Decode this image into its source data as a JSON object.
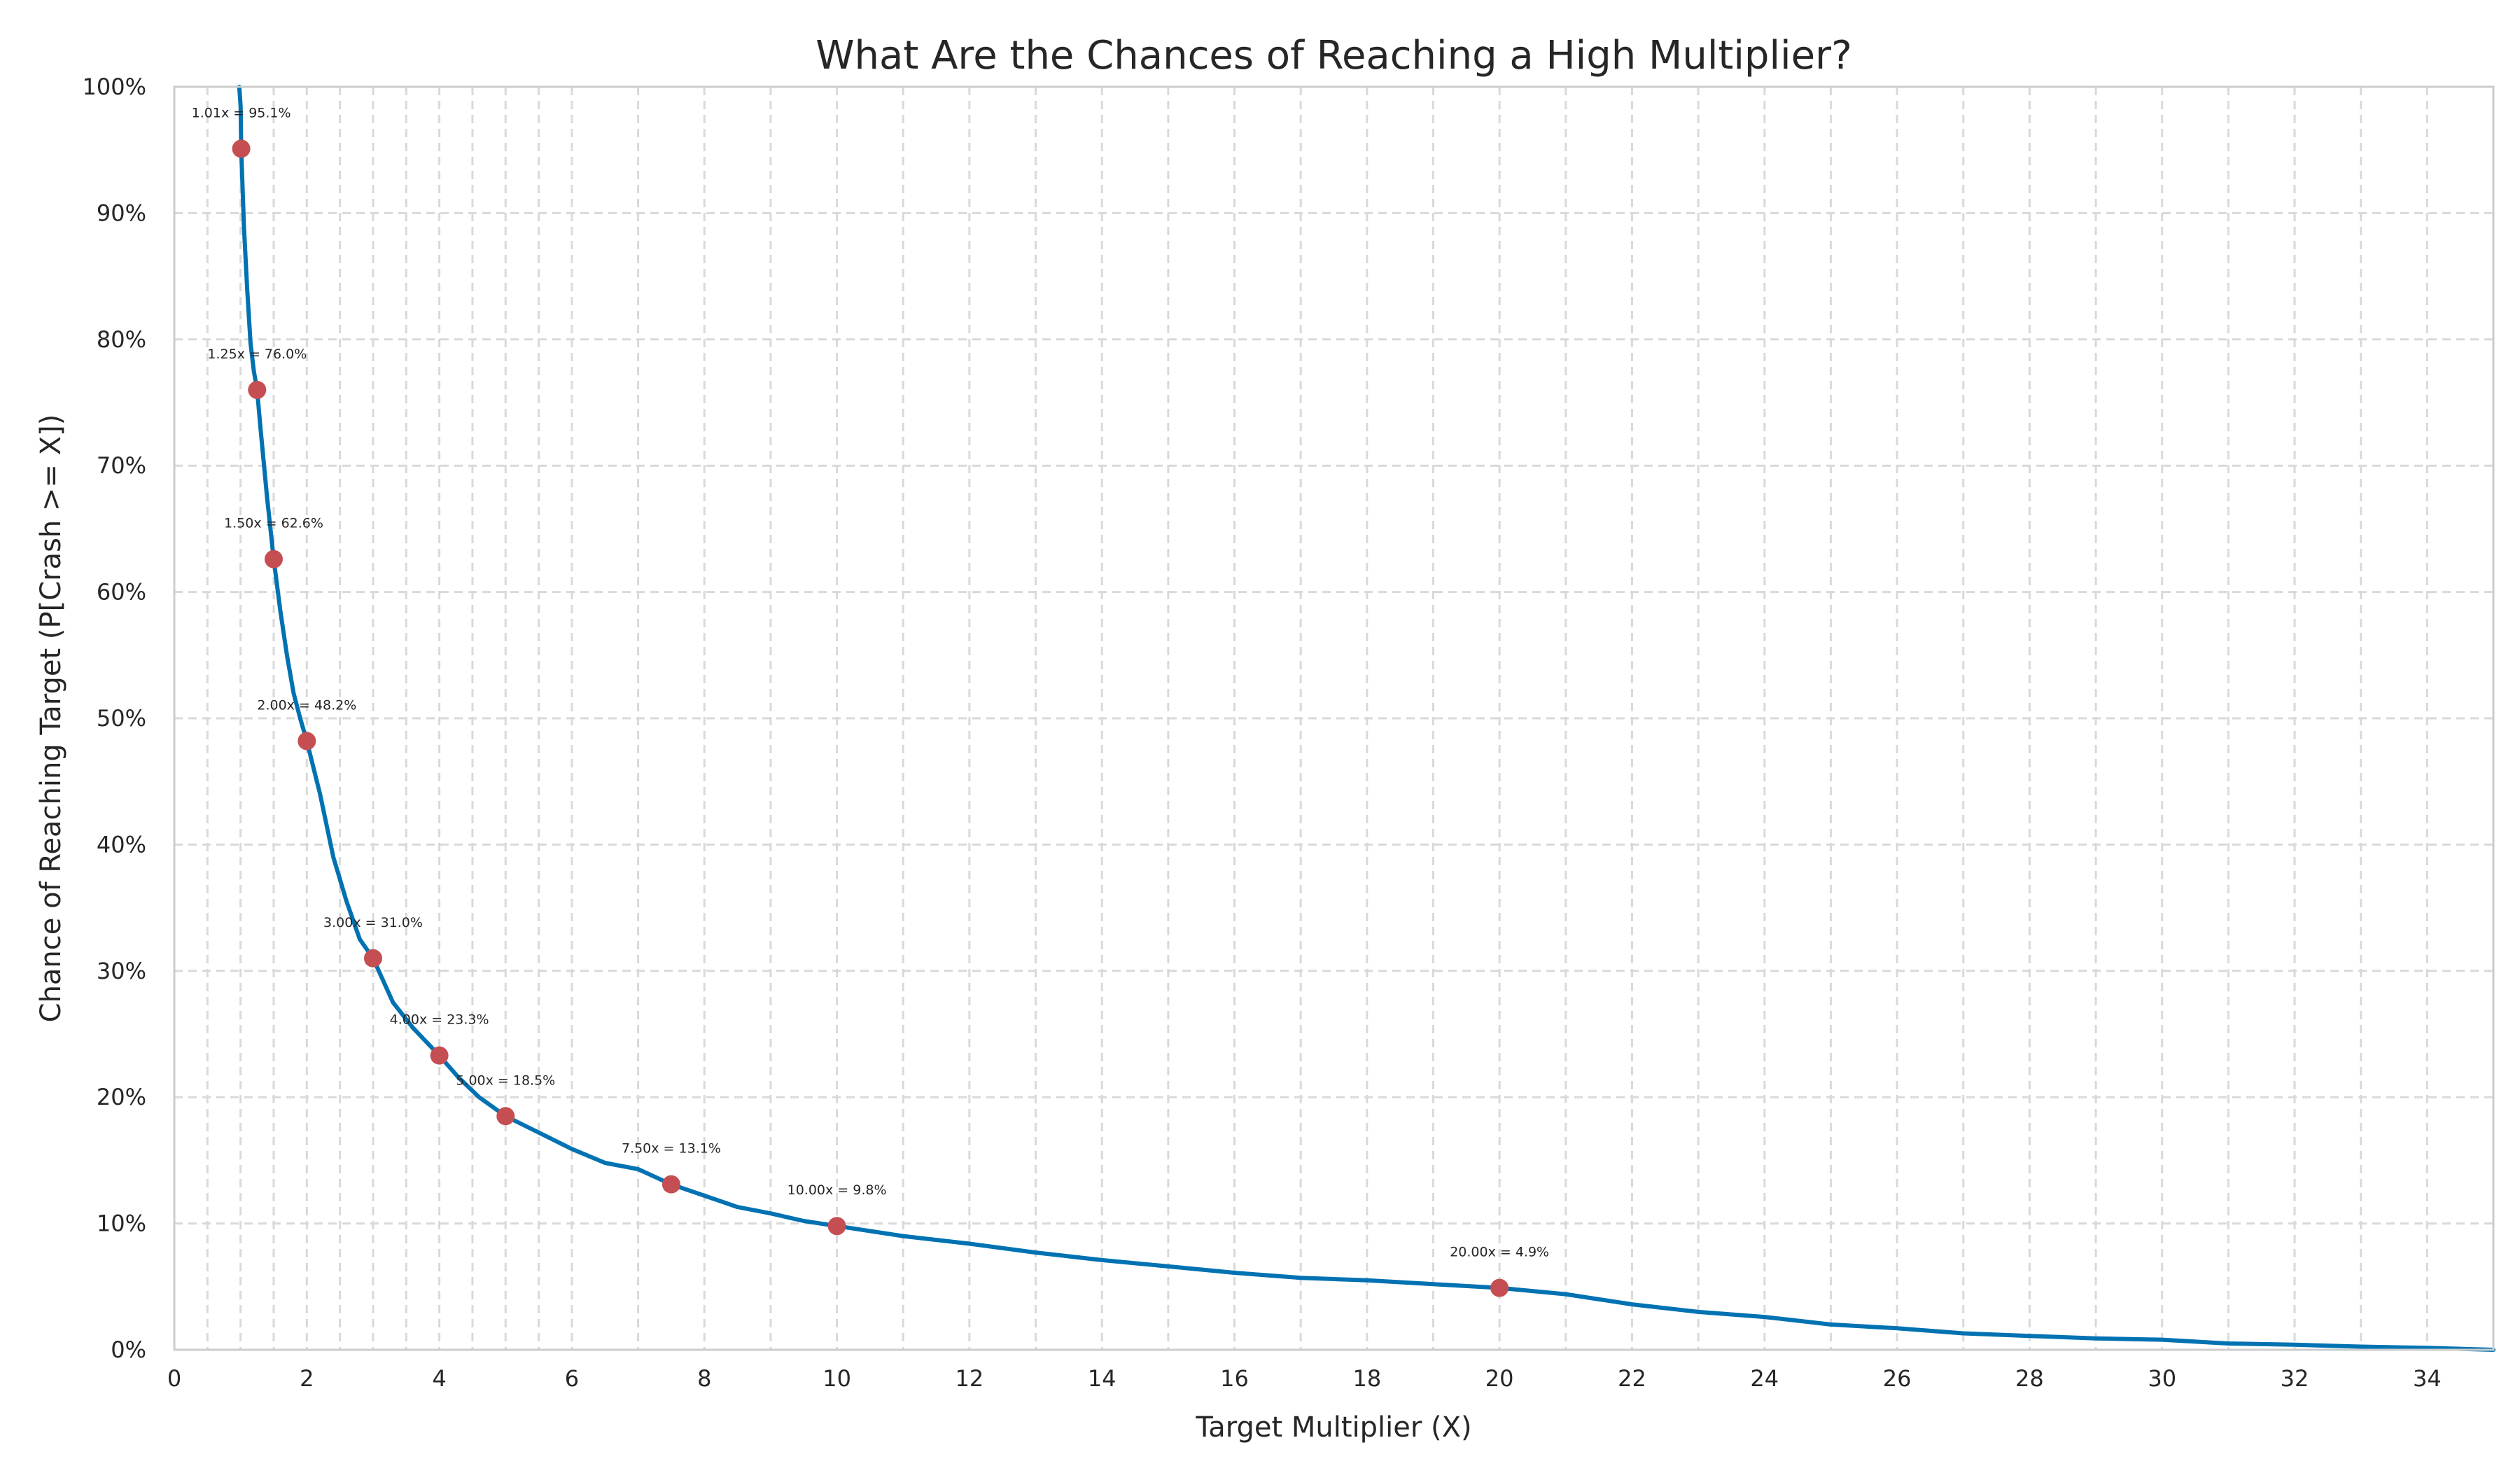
{
  "chart_data": {
    "type": "line",
    "title": "What Are the Chances of Reaching a High Multiplier?",
    "xlabel": "Target Multiplier (X)",
    "ylabel": "Chance of Reaching Target (P[Crash >= X])",
    "xlim": [
      0,
      35
    ],
    "ylim": [
      0,
      100
    ],
    "x_ticks": [
      0,
      2,
      4,
      6,
      8,
      10,
      12,
      14,
      16,
      18,
      20,
      22,
      24,
      26,
      28,
      30,
      32,
      34
    ],
    "x_tick_labels": [
      "0",
      "2",
      "4",
      "6",
      "8",
      "10",
      "12",
      "14",
      "16",
      "18",
      "20",
      "22",
      "24",
      "26",
      "28",
      "30",
      "32",
      "34"
    ],
    "x_minor_ticks": [
      0.5,
      1,
      1.5,
      2.5,
      3,
      3.5,
      4.5,
      5,
      5.5,
      7,
      9,
      11,
      13,
      15,
      17,
      19,
      21,
      23,
      25,
      27,
      29,
      31,
      33,
      35
    ],
    "y_ticks": [
      0,
      10,
      20,
      30,
      40,
      50,
      60,
      70,
      80,
      90,
      100
    ],
    "y_tick_labels": [
      "0%",
      "10%",
      "20%",
      "30%",
      "40%",
      "50%",
      "60%",
      "70%",
      "80%",
      "90%",
      "100%"
    ],
    "grid": true,
    "line_color": "#0072b2",
    "marker_color": "#c44e52",
    "series": [
      {
        "x": [
          0.98,
          1.0,
          1.01,
          1.05,
          1.1,
          1.15,
          1.2,
          1.25,
          1.3,
          1.4,
          1.5,
          1.6,
          1.7,
          1.8,
          1.9,
          2.0,
          2.2,
          2.4,
          2.6,
          2.8,
          3.0,
          3.3,
          3.6,
          4.0,
          4.3,
          4.6,
          5.0,
          5.5,
          6.0,
          6.5,
          7.0,
          7.5,
          8.0,
          8.5,
          9.0,
          9.5,
          10.0,
          11.0,
          12.0,
          13.0,
          14.0,
          15.0,
          16.0,
          17.0,
          18.0,
          19.0,
          20.0,
          21.0,
          22.0,
          23.0,
          24.0,
          25.0,
          26.0,
          27.0,
          28.0,
          29.0,
          30.0,
          31.0,
          32.0,
          33.0,
          34.0,
          35.0
        ],
        "y": [
          100,
          98.5,
          95.1,
          89.0,
          84.0,
          79.7,
          77.5,
          76.0,
          73.0,
          67.5,
          62.6,
          58.5,
          55.0,
          52.0,
          50.0,
          48.2,
          44.0,
          39.0,
          35.5,
          32.5,
          31.0,
          27.5,
          25.5,
          23.3,
          21.5,
          20.0,
          18.5,
          17.2,
          15.9,
          14.8,
          14.3,
          13.1,
          12.2,
          11.3,
          10.8,
          10.2,
          9.8,
          9.0,
          8.4,
          7.7,
          7.1,
          6.6,
          6.1,
          5.7,
          5.5,
          5.2,
          4.9,
          4.4,
          3.6,
          3.0,
          2.6,
          2.0,
          1.7,
          1.3,
          1.1,
          0.9,
          0.8,
          0.5,
          0.4,
          0.25,
          0.15,
          0.0
        ]
      }
    ],
    "highlight_points": [
      {
        "x": 1.01,
        "y": 95.1,
        "label": "1.01x = 95.1%"
      },
      {
        "x": 1.25,
        "y": 76.0,
        "label": "1.25x = 76.0%"
      },
      {
        "x": 1.5,
        "y": 62.6,
        "label": "1.50x = 62.6%"
      },
      {
        "x": 2.0,
        "y": 48.2,
        "label": "2.00x = 48.2%"
      },
      {
        "x": 3.0,
        "y": 31.0,
        "label": "3.00x = 31.0%"
      },
      {
        "x": 4.0,
        "y": 23.3,
        "label": "4.00x = 23.3%"
      },
      {
        "x": 5.0,
        "y": 18.5,
        "label": "5.00x = 18.5%"
      },
      {
        "x": 7.5,
        "y": 13.1,
        "label": "7.50x = 13.1%"
      },
      {
        "x": 10.0,
        "y": 9.8,
        "label": "10.00x = 9.8%"
      },
      {
        "x": 20.0,
        "y": 4.9,
        "label": "20.00x = 4.9%"
      }
    ]
  }
}
